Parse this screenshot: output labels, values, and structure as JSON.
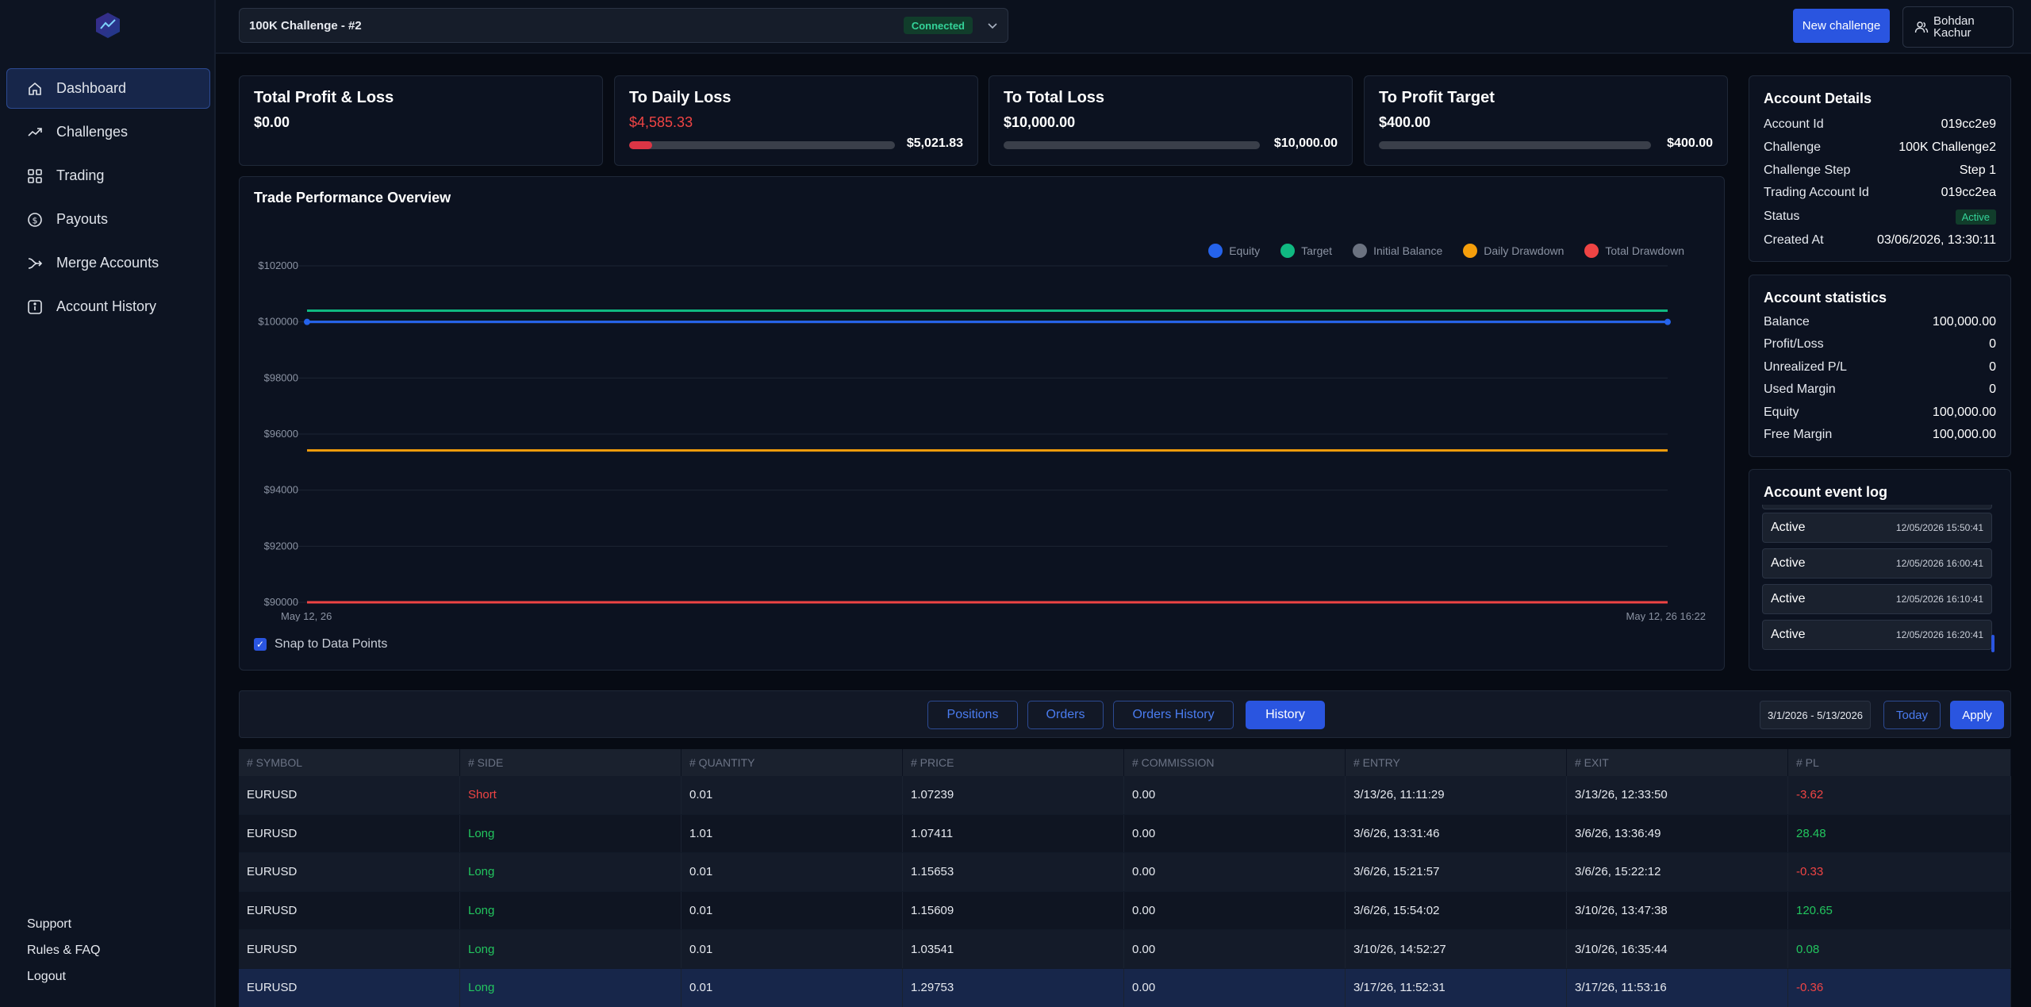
{
  "sidebar": {
    "items": [
      {
        "label": "Dashboard",
        "icon": "home-icon"
      },
      {
        "label": "Challenges",
        "icon": "trending-up-icon"
      },
      {
        "label": "Trading",
        "icon": "grid-icon"
      },
      {
        "label": "Payouts",
        "icon": "dollar-icon"
      },
      {
        "label": "Merge Accounts",
        "icon": "merge-icon"
      },
      {
        "label": "Account History",
        "icon": "info-icon"
      }
    ],
    "bottom": {
      "support": "Support",
      "rules": "Rules & FAQ",
      "logout": "Logout"
    }
  },
  "topbar": {
    "challenge": "100K Challenge - #2",
    "connection_status": "Connected",
    "new_challenge": "New challenge",
    "user_name": "Bohdan Kachur"
  },
  "stats": {
    "total_pl": {
      "title": "Total Profit & Loss",
      "value": "$0.00"
    },
    "daily_loss": {
      "title": "To Daily Loss",
      "value": "$4,585.33",
      "limit": "$5,021.83",
      "progress": 0.087
    },
    "total_loss": {
      "title": "To Total Loss",
      "value": "$10,000.00",
      "limit": "$10,000.00",
      "progress": 0
    },
    "profit_target": {
      "title": "To Profit Target",
      "value": "$400.00",
      "limit": "$400.00",
      "progress": 0
    }
  },
  "chart": {
    "title": "Trade Performance Overview",
    "snap_label": "Snap to Data Points",
    "colors": {
      "equity": "#2563eb",
      "target": "#10b981",
      "initial": "#6b7280",
      "daily": "#f59e0b",
      "total": "#ef4444"
    }
  },
  "chart_data": {
    "type": "line",
    "x": [
      "May 12, 26",
      "May 12, 26 16:22"
    ],
    "ylim": [
      90000,
      102000
    ],
    "yticks": [
      "$102000",
      "$100000",
      "$98000",
      "$96000",
      "$94000",
      "$92000",
      "$90000"
    ],
    "series": [
      {
        "name": "Equity",
        "values": [
          100000,
          100000
        ]
      },
      {
        "name": "Target",
        "values": [
          100400,
          100400
        ]
      },
      {
        "name": "Initial Balance",
        "values": [
          100000,
          100000
        ]
      },
      {
        "name": "Daily Drawdown",
        "values": [
          95414.67,
          95414.67
        ]
      },
      {
        "name": "Total Drawdown",
        "values": [
          90000,
          90000
        ]
      }
    ],
    "legend": "top-right",
    "grid": true
  },
  "account_details": {
    "title": "Account Details",
    "rows": [
      {
        "k": "Account Id",
        "v": "019cc2e9"
      },
      {
        "k": "Challenge",
        "v": "100K Challenge2"
      },
      {
        "k": "Challenge Step",
        "v": "Step 1"
      },
      {
        "k": "Trading Account Id",
        "v": "019cc2ea"
      },
      {
        "k": "Status",
        "v": "Active"
      },
      {
        "k": "Created At",
        "v": "03/06/2026, 13:30:11"
      }
    ]
  },
  "account_stats": {
    "title": "Account statistics",
    "rows": [
      {
        "k": "Balance",
        "v": "100,000.00"
      },
      {
        "k": "Profit/Loss",
        "v": "0"
      },
      {
        "k": "Unrealized P/L",
        "v": "0"
      },
      {
        "k": "Used Margin",
        "v": "0"
      },
      {
        "k": "Equity",
        "v": "100,000.00"
      },
      {
        "k": "Free Margin",
        "v": "100,000.00"
      }
    ]
  },
  "event_log": {
    "title": "Account event log",
    "items": [
      {
        "status": "Active",
        "time": "12/05/2026 15:50:41"
      },
      {
        "status": "Active",
        "time": "12/05/2026 16:00:41"
      },
      {
        "status": "Active",
        "time": "12/05/2026 16:10:41"
      },
      {
        "status": "Active",
        "time": "12/05/2026 16:20:41"
      }
    ]
  },
  "tabs": {
    "positions": "Positions",
    "orders": "Orders",
    "orders_history": "Orders History",
    "history": "History",
    "date_range": "3/1/2026 - 5/13/2026",
    "today": "Today",
    "apply": "Apply"
  },
  "table": {
    "headers": [
      "# SYMBOL",
      "# SIDE",
      "# QUANTITY",
      "# PRICE",
      "# COMMISSION",
      "# ENTRY",
      "# EXIT",
      "# PL"
    ],
    "rows": [
      [
        "EURUSD",
        "Short",
        "0.01",
        "1.07239",
        "0.00",
        "3/13/26, 11:11:29",
        "3/13/26, 12:33:50",
        "-3.62"
      ],
      [
        "EURUSD",
        "Long",
        "1.01",
        "1.07411",
        "0.00",
        "3/6/26, 13:31:46",
        "3/6/26, 13:36:49",
        "28.48"
      ],
      [
        "EURUSD",
        "Long",
        "0.01",
        "1.15653",
        "0.00",
        "3/6/26, 15:21:57",
        "3/6/26, 15:22:12",
        "-0.33"
      ],
      [
        "EURUSD",
        "Long",
        "0.01",
        "1.15609",
        "0.00",
        "3/6/26, 15:54:02",
        "3/10/26, 13:47:38",
        "120.65"
      ],
      [
        "EURUSD",
        "Long",
        "0.01",
        "1.03541",
        "0.00",
        "3/10/26, 14:52:27",
        "3/10/26, 16:35:44",
        "0.08"
      ],
      [
        "EURUSD",
        "Long",
        "0.01",
        "1.29753",
        "0.00",
        "3/17/26, 11:52:31",
        "3/17/26, 11:53:16",
        "-0.36"
      ]
    ]
  }
}
